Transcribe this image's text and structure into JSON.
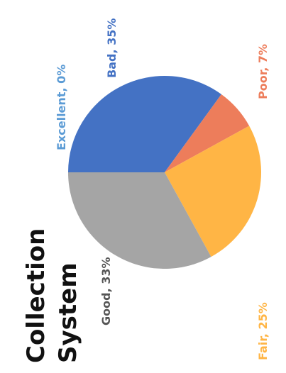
{
  "chart_data": {
    "type": "pie",
    "title_lines": [
      "Collection",
      "System"
    ],
    "slices": [
      {
        "label": "Excellent",
        "value": 0,
        "display": "Excellent, 0%",
        "color": "#5b9bd5"
      },
      {
        "label": "Bad",
        "value": 35,
        "display": "Bad, 35%",
        "color": "#4472c4"
      },
      {
        "label": "Poor",
        "value": 7,
        "display": "Poor, 7%",
        "color": "#ed7d5b"
      },
      {
        "label": "Fair",
        "value": 25,
        "display": "Fair, 25%",
        "color": "#ffb545"
      },
      {
        "label": "Good",
        "value": 33,
        "display": "Good, 33%",
        "color": "#a5a5a5"
      }
    ],
    "title_color": "#111111",
    "label_colors": {
      "Excellent": "#5b9bd5",
      "Bad": "#4472c4",
      "Poor": "#ed7d5b",
      "Fair": "#ffb545",
      "Good": "#555555"
    }
  }
}
